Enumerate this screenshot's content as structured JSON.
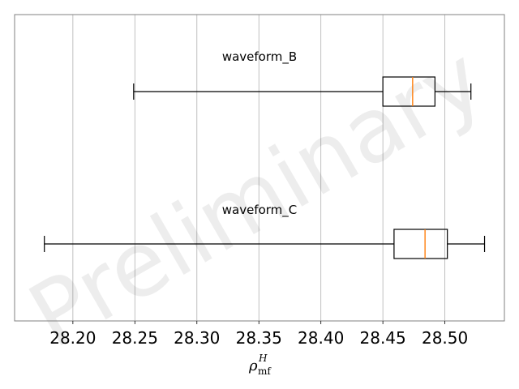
{
  "chart_data": {
    "type": "boxplot",
    "orientation": "horizontal",
    "title": "",
    "xlabel": {
      "symbol": "ρ",
      "subscript": "mf",
      "superscript": "H"
    },
    "xlim": [
      28.153,
      28.548
    ],
    "xticks": [
      28.2,
      28.25,
      28.3,
      28.35,
      28.4,
      28.45,
      28.5
    ],
    "xtick_labels": [
      "28.20",
      "28.25",
      "28.30",
      "28.35",
      "28.40",
      "28.45",
      "28.50"
    ],
    "grid": {
      "x": true,
      "y": false
    },
    "watermark": "Preliminary",
    "boxes": [
      {
        "name": "waveform_B",
        "whisker_low": 28.249,
        "q1": 28.45,
        "median": 28.474,
        "q3": 28.492,
        "whisker_high": 28.521
      },
      {
        "name": "waveform_C",
        "whisker_low": 28.177,
        "q1": 28.459,
        "median": 28.484,
        "q3": 28.502,
        "whisker_high": 28.532
      }
    ],
    "colors": {
      "box": "#000000",
      "median": "#ff7f0e",
      "grid": "#b0b0b0",
      "frame": "#808080"
    }
  }
}
